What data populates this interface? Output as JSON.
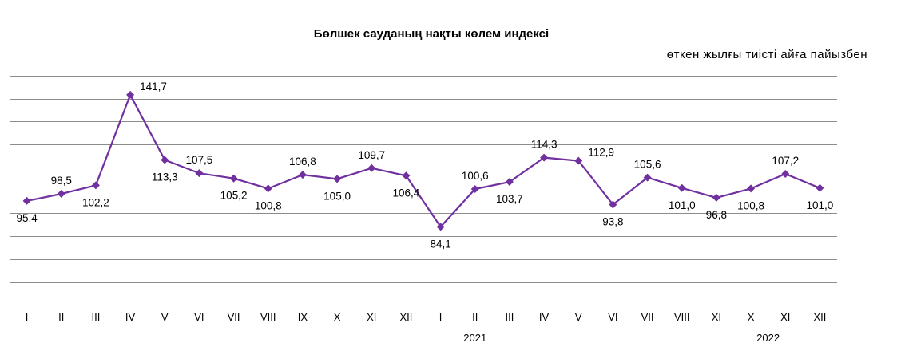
{
  "chart_data": {
    "type": "line",
    "title": "Бөлшек сауданың  нақты көлем индексі",
    "subtitle": "өткен жылғы тиісті айға пайызбен",
    "categories": [
      "I",
      "II",
      "III",
      "IV",
      "V",
      "VI",
      "VII",
      "VIII",
      "IX",
      "X",
      "XI",
      "XII",
      "I",
      "II",
      "III",
      "IV",
      "V",
      "VI",
      "VII",
      "VIII",
      "XI",
      "X",
      "XI",
      "XII"
    ],
    "year_labels": [
      {
        "label": "2021",
        "index": 13
      },
      {
        "label": "2022",
        "index": 21.5
      }
    ],
    "series": [
      {
        "color": "#7030a0",
        "values": [
          95.4,
          98.5,
          102.2,
          141.7,
          113.3,
          107.5,
          105.2,
          100.8,
          106.8,
          105.0,
          109.7,
          106.4,
          84.1,
          100.6,
          103.7,
          114.3,
          112.9,
          93.8,
          105.6,
          101.0,
          96.8,
          100.8,
          107.2,
          101.0
        ],
        "labels": [
          "95,4",
          "98,5",
          "102,2",
          "141,7",
          "113,3",
          "107,5",
          "105,2",
          "100,8",
          "106,8",
          "105,0",
          "109,7",
          "106,4",
          "84,1",
          "100,6",
          "103,7",
          "114,3",
          "112,9",
          "93,8",
          "105,6",
          "101,0",
          "96,8",
          "100,8",
          "107,2",
          "101,0"
        ],
        "label_positions": [
          "below",
          "above",
          "below",
          "right",
          "below",
          "above",
          "below",
          "below",
          "above",
          "below",
          "above",
          "below",
          "below",
          "above",
          "below",
          "above",
          "right",
          "below",
          "above",
          "below",
          "below",
          "below",
          "above",
          "below"
        ]
      }
    ],
    "ylim": [
      55,
      150
    ],
    "y_gridlines": [
      60,
      70,
      80,
      90,
      100,
      110,
      120,
      130,
      140,
      150
    ],
    "grid": true,
    "legend": "none"
  }
}
